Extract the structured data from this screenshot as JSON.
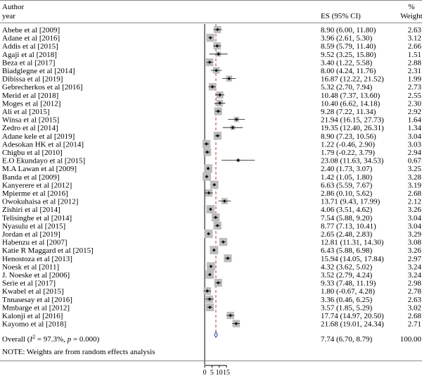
{
  "chart_data": {
    "type": "forest",
    "headers": {
      "author": "Author",
      "year": "year",
      "es": "ES (95% CI)",
      "weight_pct": "%",
      "weight": "Weight"
    },
    "studies": [
      {
        "label": "Abebe et al [2009]",
        "es": 8.9,
        "lo": 6.0,
        "hi": 11.8,
        "ci_text": "8.90 (6.00, 11.80)",
        "weight": "2.63"
      },
      {
        "label": "Adane et al [2016]",
        "es": 3.96,
        "lo": 2.61,
        "hi": 5.3,
        "ci_text": "3.96 (2.61, 5.30)",
        "weight": "3.12"
      },
      {
        "label": "Addis et al [2015]",
        "es": 8.59,
        "lo": 5.79,
        "hi": 11.4,
        "ci_text": "8.59 (5.79, 11.40)",
        "weight": "2.66"
      },
      {
        "label": "Agaji et al [2018]",
        "es": 9.52,
        "lo": 3.25,
        "hi": 15.8,
        "ci_text": "9.52 (3.25, 15.80)",
        "weight": "1.51"
      },
      {
        "label": "Beza et al [2017]",
        "es": 3.4,
        "lo": 1.22,
        "hi": 5.58,
        "ci_text": "3.40 (1.22, 5.58)",
        "weight": "2.88"
      },
      {
        "label": "Biadglegne et al [2014]",
        "es": 8.0,
        "lo": 4.24,
        "hi": 11.76,
        "ci_text": "8.00 (4.24, 11.76)",
        "weight": "2.31"
      },
      {
        "label": "Dibissa et al [2019]",
        "es": 16.87,
        "lo": 12.22,
        "hi": 21.52,
        "ci_text": "16.87 (12.22, 21.52)",
        "weight": "1.99"
      },
      {
        "label": "Gebrecherkos et al [2016]",
        "es": 5.32,
        "lo": 2.7,
        "hi": 7.94,
        "ci_text": "5.32 (2.70, 7.94)",
        "weight": "2.73"
      },
      {
        "label": "Merid et al [2018]",
        "es": 10.48,
        "lo": 7.37,
        "hi": 13.6,
        "ci_text": "10.48 (7.37, 13.60)",
        "weight": "2.55"
      },
      {
        "label": "Moges et al [2012]",
        "es": 10.4,
        "lo": 6.62,
        "hi": 14.18,
        "ci_text": "10.40 (6.62, 14.18)",
        "weight": "2.30"
      },
      {
        "label": "Ali et al [2015]",
        "es": 9.28,
        "lo": 7.22,
        "hi": 11.34,
        "ci_text": "9.28 (7.22, 11.34)",
        "weight": "2.92"
      },
      {
        "label": "Winsa et al [2015]",
        "es": 21.94,
        "lo": 16.15,
        "hi": 27.73,
        "ci_text": "21.94 (16.15, 27.73)",
        "weight": "1.64"
      },
      {
        "label": "Zedro et al [2014]",
        "es": 19.35,
        "lo": 12.4,
        "hi": 26.31,
        "ci_text": "19.35 (12.40, 26.31)",
        "weight": "1.34"
      },
      {
        "label": "Adane kele et al [2019]",
        "es": 8.9,
        "lo": 7.23,
        "hi": 10.56,
        "ci_text": "8.90 (7.23, 10.56)",
        "weight": "3.04"
      },
      {
        "label": "Adesokan HK et al [2014]",
        "es": 1.22,
        "lo": -0.46,
        "hi": 2.9,
        "ci_text": "1.22 (-0.46, 2.90)",
        "weight": "3.03"
      },
      {
        "label": "Chigbu et al [2010]",
        "es": 1.79,
        "lo": -0.22,
        "hi": 3.79,
        "ci_text": "1.79 (-0.22, 3.79)",
        "weight": "2.94"
      },
      {
        "label": "E.O Ekundayo et al [2015]",
        "es": 23.08,
        "lo": 11.63,
        "hi": 34.53,
        "ci_text": "23.08 (11.63, 34.53)",
        "weight": "0.67"
      },
      {
        "label": "M.A Lawan et al [2009]",
        "es": 2.4,
        "lo": 1.73,
        "hi": 3.07,
        "ci_text": "2.40 (1.73, 3.07)",
        "weight": "3.25"
      },
      {
        "label": "Banda et al [2009]",
        "es": 1.42,
        "lo": 1.05,
        "hi": 1.8,
        "ci_text": "1.42 (1.05, 1.80)",
        "weight": "3.28"
      },
      {
        "label": "Kanyerere et al [2012]",
        "es": 6.63,
        "lo": 5.59,
        "hi": 7.67,
        "ci_text": "6.63 (5.59, 7.67)",
        "weight": "3.19"
      },
      {
        "label": "Mpierme et al [2016]",
        "es": 2.86,
        "lo": 0.1,
        "hi": 5.62,
        "ci_text": "2.86 (0.10, 5.62)",
        "weight": "2.68"
      },
      {
        "label": "Owokuhaisa et al [2012]",
        "es": 13.71,
        "lo": 9.43,
        "hi": 17.99,
        "ci_text": "13.71 (9.43, 17.99)",
        "weight": "2.12"
      },
      {
        "label": "Zishiri et al [2014]",
        "es": 4.06,
        "lo": 3.51,
        "hi": 4.62,
        "ci_text": "4.06 (3.51, 4.62)",
        "weight": "3.26"
      },
      {
        "label": "Telisinghe et al [2014]",
        "es": 7.54,
        "lo": 5.88,
        "hi": 9.2,
        "ci_text": "7.54 (5.88, 9.20)",
        "weight": "3.04"
      },
      {
        "label": "Nyasulu et al [2015]",
        "es": 8.77,
        "lo": 7.13,
        "hi": 10.41,
        "ci_text": "8.77 (7.13, 10.41)",
        "weight": "3.04"
      },
      {
        "label": "Jordan et al [2019]",
        "es": 2.65,
        "lo": 2.48,
        "hi": 2.83,
        "ci_text": "2.65 (2.48, 2.83)",
        "weight": "3.29"
      },
      {
        "label": "Habenzu et al [2007]",
        "es": 12.81,
        "lo": 11.31,
        "hi": 14.3,
        "ci_text": "12.81 (11.31, 14.30)",
        "weight": "3.08"
      },
      {
        "label": "Katie R Maggard et al [2015]",
        "es": 6.43,
        "lo": 5.88,
        "hi": 6.98,
        "ci_text": "6.43 (5.88, 6.98)",
        "weight": "3.26"
      },
      {
        "label": "Henostoza et al [2013]",
        "es": 15.94,
        "lo": 14.05,
        "hi": 17.84,
        "ci_text": "15.94 (14.05, 17.84)",
        "weight": "2.97"
      },
      {
        "label": "Noesk et al [2011]",
        "es": 4.32,
        "lo": 3.62,
        "hi": 5.02,
        "ci_text": "4.32 (3.62, 5.02)",
        "weight": "3.24"
      },
      {
        "label": "J. Noeske et al [2006]",
        "es": 3.52,
        "lo": 2.79,
        "hi": 4.24,
        "ci_text": "3.52 (2.79, 4.24)",
        "weight": "3.24"
      },
      {
        "label": "Serie et al [2017]",
        "es": 9.33,
        "lo": 7.48,
        "hi": 11.19,
        "ci_text": "9.33 (7.48, 11.19)",
        "weight": "2.98"
      },
      {
        "label": "Kwabel et al [2015]",
        "es": 1.8,
        "lo": -0.67,
        "hi": 4.28,
        "ci_text": "1.80 (-0.67, 4.28)",
        "weight": "2.78"
      },
      {
        "label": "Tnnasesay et al [2016]",
        "es": 3.36,
        "lo": 0.46,
        "hi": 6.25,
        "ci_text": "3.36 (0.46, 6.25)",
        "weight": "2.63"
      },
      {
        "label": "Mmbarge et al [2012]",
        "es": 3.57,
        "lo": 1.85,
        "hi": 5.29,
        "ci_text": "3.57 (1.85, 5.29)",
        "weight": "3.02"
      },
      {
        "label": "Kalonji et al [2016]",
        "es": 17.74,
        "lo": 14.97,
        "hi": 20.5,
        "ci_text": "17.74 (14.97, 20.50)",
        "weight": "2.68"
      },
      {
        "label": "Kayomo et al [2018]",
        "es": 21.68,
        "lo": 19.01,
        "hi": 24.34,
        "ci_text": "21.68 (19.01, 24.34)",
        "weight": "2.71"
      }
    ],
    "overall": {
      "label_prefix": "Overall (",
      "label_i2": "I",
      "label_sup": "2",
      "label_mid": " = 97.3%, ",
      "label_p": "p",
      "label_end": " = 0.000)",
      "es": 7.74,
      "lo": 6.7,
      "hi": 8.79,
      "ci_text": "7.74 (6.70, 8.79)",
      "weight": "100.00"
    },
    "note": "NOTE: Weights are from random effects analysis",
    "x_ticks": [
      "0",
      "5",
      "10",
      "15"
    ],
    "x_tick_values": [
      0,
      5,
      10,
      15
    ],
    "null_line": 0,
    "colors": {
      "box": "#bdbdbd",
      "point": "#111111",
      "ci": "#111111",
      "overall_line": "#c0392b",
      "diamond": "#2c3e91",
      "rule": "#888888"
    }
  }
}
